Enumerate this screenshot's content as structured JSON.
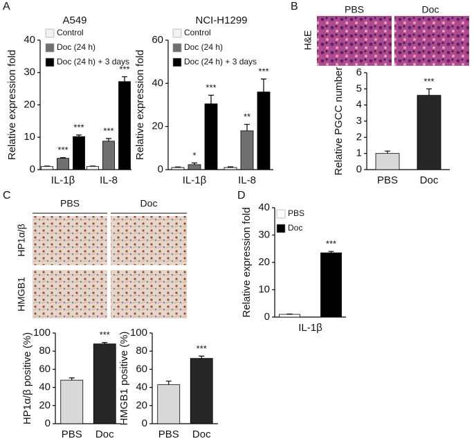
{
  "chart_data": [
    {
      "type": "bar",
      "title": "A549",
      "ylabel": "Relative expression fold",
      "categories": [
        "IL-1β",
        "IL-8"
      ],
      "series": [
        {
          "name": "Control",
          "color": "#f2f2f2",
          "values": [
            1,
            1
          ],
          "errors": [
            0.1,
            0.1
          ],
          "annotations": [
            null,
            null
          ]
        },
        {
          "name": "Doc (24 h)",
          "color": "#707070",
          "values": [
            3.5,
            8.8
          ],
          "errors": [
            0.2,
            0.8
          ],
          "annotations": [
            "***",
            "***"
          ]
        },
        {
          "name": "Doc (24 h) + 3 days",
          "color": "#000000",
          "values": [
            10.2,
            27.2
          ],
          "errors": [
            0.5,
            1.5
          ],
          "annotations": [
            "***",
            "***"
          ]
        }
      ],
      "ylim": [
        0,
        40
      ],
      "yticks": [
        0,
        10,
        20,
        30,
        40
      ]
    },
    {
      "type": "bar",
      "title": "NCI-H1299",
      "ylabel": "Relative expression fold",
      "categories": [
        "IL-1β",
        "IL-8"
      ],
      "series": [
        {
          "name": "Control",
          "color": "#f2f2f2",
          "values": [
            1,
            1
          ],
          "errors": [
            0.2,
            0.3
          ],
          "annotations": [
            null,
            null
          ]
        },
        {
          "name": "Doc (24 h)",
          "color": "#707070",
          "values": [
            2.3,
            18
          ],
          "errors": [
            0.8,
            3
          ],
          "annotations": [
            "*",
            "**"
          ]
        },
        {
          "name": "Doc (24 h) + 3 days",
          "color": "#000000",
          "values": [
            30.5,
            36
          ],
          "errors": [
            4,
            6
          ],
          "annotations": [
            "***",
            "***"
          ]
        }
      ],
      "ylim": [
        0,
        60
      ],
      "yticks": [
        0,
        20,
        40,
        60
      ]
    },
    {
      "type": "bar",
      "ylabel": "Relative PGCC number",
      "categories": [
        "PBS",
        "Doc"
      ],
      "values": [
        1,
        4.6
      ],
      "errors": [
        0.15,
        0.4
      ],
      "colors": [
        "#d9d9d9",
        "#262626"
      ],
      "annotations": [
        null,
        "***"
      ],
      "ylim": [
        0,
        6
      ],
      "yticks": [
        0,
        1,
        2,
        3,
        4,
        5,
        6
      ]
    },
    {
      "type": "bar",
      "ylabel": "HP1α/β positive (%)",
      "categories": [
        "PBS",
        "Doc"
      ],
      "values": [
        48,
        88
      ],
      "errors": [
        2.5,
        1.5
      ],
      "colors": [
        "#d9d9d9",
        "#262626"
      ],
      "annotations": [
        null,
        "***"
      ],
      "ylim": [
        0,
        100
      ],
      "yticks": [
        0,
        20,
        40,
        60,
        80,
        100
      ]
    },
    {
      "type": "bar",
      "ylabel": "HMGB1 positive (%)",
      "categories": [
        "PBS",
        "Doc"
      ],
      "values": [
        43,
        72
      ],
      "errors": [
        4,
        2.5
      ],
      "colors": [
        "#d9d9d9",
        "#262626"
      ],
      "annotations": [
        null,
        "***"
      ],
      "ylim": [
        0,
        100
      ],
      "yticks": [
        0,
        20,
        40,
        60,
        80,
        100
      ]
    },
    {
      "type": "bar",
      "ylabel": "Relative expression fold",
      "categories": [
        "IL-1β"
      ],
      "series": [
        {
          "name": "PBS",
          "color": "#ffffff",
          "values": [
            1
          ],
          "errors": [
            0.1
          ],
          "annotations": [
            null
          ]
        },
        {
          "name": "Doc",
          "color": "#000000",
          "values": [
            23.5
          ],
          "errors": [
            0.5
          ],
          "annotations": [
            "***"
          ]
        }
      ],
      "ylim": [
        0,
        40
      ],
      "yticks": [
        0,
        10,
        20,
        30,
        40
      ]
    }
  ],
  "panel_letters": [
    "A",
    "B",
    "C",
    "D"
  ],
  "image_labels": {
    "b_columns": [
      "PBS",
      "Doc"
    ],
    "b_row": "H&E",
    "c_columns": [
      "PBS",
      "Doc"
    ],
    "c_rows": [
      "HP1α/β",
      "HMGB1"
    ]
  }
}
